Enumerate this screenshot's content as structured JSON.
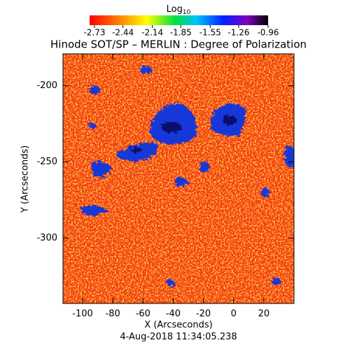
{
  "chart_data": {
    "type": "heatmap",
    "title": "Hinode SOT/SP – MERLIN : Degree of Polarization",
    "colorbar_label": "Log",
    "colorbar_label_subscript": "10",
    "clim": [
      -2.78,
      -0.96
    ],
    "cticks": [
      -2.73,
      -2.44,
      -2.14,
      -1.85,
      -1.55,
      -1.26,
      -0.96
    ],
    "x_label": "X (Arcseconds)",
    "y_label": "Y (Arcseconds)",
    "xlim": [
      -113,
      40
    ],
    "xticks": [
      -100,
      -80,
      -60,
      -40,
      -20,
      0,
      20
    ],
    "ylim": [
      -343,
      -179
    ],
    "yticks": [
      -200,
      -250,
      -300
    ],
    "annotation": "4-Aug-2018 11:34:05.238"
  }
}
